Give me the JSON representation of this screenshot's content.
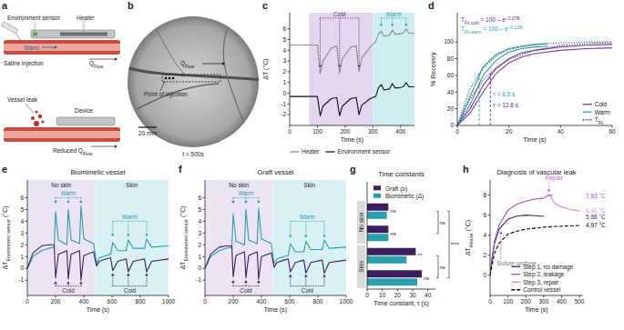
{
  "panels": {
    "a": {
      "label": "a",
      "environment_sensor": "Environment sensor",
      "heater": "Heater",
      "saline_injection": "Saline injection",
      "warm": "Warm",
      "flow": {
        "parts": [
          {
            "t": "Q"
          },
          {
            "t": "Flow",
            "sub": true
          }
        ]
      },
      "vessel_leak": "Vessel leak",
      "device": "Device",
      "reduced_flow": {
        "parts": [
          {
            "t": "Reduced Q"
          },
          {
            "t": "Flow",
            "sub": true
          }
        ]
      }
    },
    "b": {
      "label": "b",
      "flow": {
        "parts": [
          {
            "t": "Q"
          },
          {
            "t": "Flow",
            "sub": true
          }
        ]
      },
      "point_of_injection": "Point of injection",
      "scale_bar": "20 mm",
      "time": "t = 500s"
    }
  },
  "chart_data": [
    {
      "type": "line",
      "label": "c",
      "xlabel": "Time (s)",
      "ylabel": "ΔT (°C)",
      "xlim": [
        0,
        450
      ],
      "xticks": [
        0,
        100,
        200,
        300,
        400
      ],
      "ylim": [
        -3,
        7.5
      ],
      "yticks": [
        -2,
        -1,
        0,
        1,
        2,
        3,
        4,
        5,
        6
      ],
      "x": [
        0,
        60,
        100,
        110,
        120,
        150,
        170,
        180,
        190,
        220,
        240,
        250,
        260,
        290,
        310,
        320,
        330,
        340,
        360,
        370,
        380,
        390,
        410,
        420,
        430,
        450
      ],
      "series": [
        {
          "name": "Heater",
          "color": "#8c8c8c",
          "values": [
            4.5,
            4.5,
            4.5,
            1.8,
            3.0,
            4.2,
            4.4,
            1.9,
            3.2,
            4.3,
            4.4,
            2.0,
            3.3,
            4.3,
            4.8,
            5.5,
            5.8,
            5.3,
            5.4,
            5.9,
            5.5,
            5.5,
            5.6,
            6.0,
            5.6,
            5.6
          ]
        },
        {
          "name": "Environment sensor",
          "color": "#111111",
          "values": [
            -0.3,
            -0.3,
            -0.3,
            -2.1,
            -1.2,
            -0.5,
            -0.4,
            -2.1,
            -1.2,
            -0.5,
            -0.4,
            -2.0,
            -1.1,
            -0.5,
            -0.3,
            0.5,
            0.8,
            0.3,
            0.4,
            0.9,
            0.5,
            0.5,
            0.6,
            1.0,
            0.6,
            0.6
          ]
        }
      ],
      "legend": "bottom",
      "regions": [
        {
          "from": 70,
          "to": 300,
          "color": "#e4d6ef"
        },
        {
          "from": 300,
          "to": 450,
          "color": "#cfeef1"
        }
      ],
      "annotations": [
        {
          "text": "Cold",
          "x": [
            110,
            180,
            250
          ],
          "y": 7.0,
          "to": 2.4,
          "color": "#6a2c91"
        },
        {
          "text": "Warm",
          "x": [
            330,
            370,
            420
          ],
          "y": 7.0,
          "to": 6.2,
          "color": "#2b9fae"
        }
      ]
    },
    {
      "type": "line",
      "label": "d",
      "xlabel": "Time (s)",
      "ylabel": "% Recovery",
      "xlim": [
        0,
        60
      ],
      "xticks": [
        0,
        20,
        40,
        60
      ],
      "ylim": [
        0,
        135
      ],
      "yticks": [
        0,
        20,
        40,
        60,
        80,
        100
      ],
      "series": [
        {
          "name": "Cold",
          "color": "#7b3fa0",
          "x": [
            0,
            5,
            10,
            15,
            20,
            25,
            30,
            40,
            50,
            60
          ],
          "values": [
            0,
            15,
            40,
            62,
            75,
            82,
            86,
            90,
            92,
            93
          ]
        },
        {
          "name": "Cold",
          "color": "#7b3fa0",
          "x": [
            0,
            5,
            10,
            15,
            20,
            25,
            30,
            40,
            50,
            60
          ],
          "values": [
            0,
            20,
            48,
            68,
            80,
            87,
            90,
            94,
            96,
            97
          ]
        },
        {
          "name": "Warm",
          "color": "#2b9fae",
          "x": [
            0,
            5,
            10,
            15,
            20,
            25,
            30,
            35
          ],
          "values": [
            0,
            35,
            70,
            85,
            92,
            95,
            97,
            98
          ]
        },
        {
          "name": "Warm",
          "color": "#2b9fae",
          "x": [
            0,
            5,
            10,
            15,
            20,
            25,
            30,
            35
          ],
          "values": [
            0,
            25,
            60,
            78,
            88,
            92,
            94,
            95
          ]
        },
        {
          "name": "T",
          "name_sub": "Fit",
          "color": "#4a1f66",
          "line_style": "dotted",
          "x": [
            0,
            5,
            10,
            15,
            20,
            30,
            40,
            50,
            60
          ],
          "values": [
            0,
            32,
            54,
            69,
            79,
            90,
            96,
            98,
            99
          ]
        },
        {
          "name": "T",
          "name_sub": "Fit",
          "color": "#1d6f79",
          "line_style": "dotted",
          "x": [
            0,
            5,
            10,
            15,
            20,
            30,
            40,
            50,
            60
          ],
          "values": [
            0,
            45,
            69,
            83,
            91,
            97,
            99,
            100,
            100
          ]
        }
      ],
      "legend": "lower right",
      "fits": [
        {
          "parts": [
            {
              "t": "T"
            },
            {
              "t": "Fit cold",
              "sub": true
            },
            {
              "t": " = 100 – e"
            },
            {
              "t": "−0.078t",
              "sup": true
            }
          ],
          "color": "#6a2c91"
        },
        {
          "parts": [
            {
              "t": "T"
            },
            {
              "t": "Fit warm",
              "sub": true
            },
            {
              "t": " = 100 – e"
            },
            {
              "t": "−0.118t",
              "sup": true
            }
          ],
          "color": "#2b9fae"
        }
      ],
      "taus": [
        {
          "label": "τ = 8.5 s",
          "value": 8.5,
          "level": 63,
          "color": "#2b9fae"
        },
        {
          "label": "τ = 12.8 s",
          "value": 12.8,
          "level": 63,
          "color": "#6a2c91"
        }
      ]
    },
    {
      "type": "line",
      "label": "e",
      "title": "Biomimetic vessel",
      "xlabel": "Time (s)",
      "ylabel": {
        "parts": [
          {
            "t": "ΔT"
          },
          {
            "t": "Environment sensor",
            "sub": true
          },
          {
            "t": " (°C)"
          }
        ]
      },
      "xlim": [
        0,
        1000
      ],
      "xticks": [
        0,
        200,
        400,
        600,
        800,
        1000
      ],
      "ylim": [
        -2.3,
        7.5
      ],
      "yticks": [
        -1,
        0,
        1,
        2,
        3,
        4,
        5,
        6
      ],
      "x": [
        0,
        40,
        100,
        150,
        190,
        200,
        220,
        280,
        290,
        310,
        370,
        380,
        400,
        470,
        490,
        510,
        560,
        590,
        605,
        640,
        700,
        715,
        750,
        830,
        845,
        880,
        1000
      ],
      "series": [
        {
          "color": "#2b9fae",
          "values": [
            0,
            1.0,
            1.5,
            1.7,
            1.8,
            4.8,
            2.4,
            2.0,
            5.0,
            2.4,
            2.1,
            5.3,
            2.5,
            2.1,
            0.4,
            0.9,
            1.1,
            1.2,
            2.2,
            1.5,
            1.5,
            2.4,
            1.7,
            1.7,
            2.5,
            1.8,
            1.9
          ]
        },
        {
          "color": "#3b1f5c",
          "values": [
            0,
            1.3,
            1.9,
            2.0,
            2.0,
            -0.8,
            1.2,
            1.5,
            -0.9,
            1.2,
            1.5,
            -1.0,
            1.1,
            1.4,
            0.2,
            0.6,
            0.8,
            0.9,
            -0.2,
            0.6,
            0.8,
            -0.3,
            0.6,
            0.8,
            -0.3,
            0.6,
            0.8
          ]
        }
      ],
      "regions": [
        {
          "label": "No skin",
          "from": 0,
          "to": 480,
          "color": "#ece3f3"
        },
        {
          "label": "Skin",
          "from": 480,
          "to": 1000,
          "color": "#d9f1f3"
        }
      ],
      "annotations": [
        {
          "text": "Warm",
          "x": [
            200,
            290,
            380
          ],
          "y": 6.0,
          "to": 5.5,
          "color": "#2b9fae"
        },
        {
          "text": "Cold",
          "x": [
            200,
            290,
            380
          ],
          "y": -1.5,
          "to": -1.1,
          "color": "#3b1f5c"
        },
        {
          "text": "Warm",
          "x": [
            605,
            715,
            845
          ],
          "y": 4.0,
          "to": 2.7,
          "color": "#2b9fae"
        },
        {
          "text": "Cold",
          "x": [
            605,
            715,
            845
          ],
          "y": -1.5,
          "to": -0.4,
          "color": "#3b1f5c"
        }
      ]
    },
    {
      "type": "line",
      "label": "f",
      "title": "Graft vessel",
      "xlabel": "Time (s)",
      "ylabel": {
        "parts": [
          {
            "t": "ΔT"
          },
          {
            "t": "Environment sensor",
            "sub": true
          },
          {
            "t": " (°C)"
          }
        ]
      },
      "xlim": [
        0,
        1000
      ],
      "xticks": [
        0,
        200,
        400,
        600,
        800,
        1000
      ],
      "ylim": [
        -2.3,
        7.5
      ],
      "yticks": [
        -1,
        0,
        1,
        2,
        3,
        4,
        5,
        6
      ],
      "x": [
        0,
        40,
        100,
        150,
        190,
        200,
        220,
        280,
        290,
        310,
        370,
        380,
        400,
        470,
        490,
        510,
        560,
        590,
        605,
        640,
        700,
        715,
        750,
        830,
        845,
        880,
        1000
      ],
      "series": [
        {
          "color": "#2b9fae",
          "values": [
            0,
            1.0,
            1.5,
            1.7,
            1.8,
            4.6,
            2.3,
            2.0,
            5.0,
            2.4,
            2.1,
            5.1,
            2.5,
            2.1,
            0.4,
            0.8,
            1.0,
            1.1,
            2.1,
            1.4,
            1.4,
            2.3,
            1.6,
            1.6,
            2.4,
            1.7,
            1.8
          ]
        },
        {
          "color": "#3b1f5c",
          "values": [
            0,
            1.2,
            1.8,
            1.9,
            1.9,
            -0.7,
            1.1,
            1.4,
            -0.8,
            1.1,
            1.4,
            -0.9,
            1.0,
            1.3,
            0.1,
            0.5,
            0.7,
            0.8,
            -0.3,
            0.5,
            0.7,
            -0.4,
            0.5,
            0.7,
            -0.4,
            0.5,
            0.7
          ]
        }
      ],
      "regions": [
        {
          "label": "No skin",
          "from": 0,
          "to": 480,
          "color": "#ece3f3"
        },
        {
          "label": "Skin",
          "from": 480,
          "to": 1000,
          "color": "#d9f1f3"
        }
      ],
      "annotations": [
        {
          "text": "Warm",
          "x": [
            200,
            290,
            380
          ],
          "y": 6.0,
          "to": 5.5,
          "color": "#2b9fae"
        },
        {
          "text": "Cold",
          "x": [
            200,
            290,
            380
          ],
          "y": -1.5,
          "to": -1.0,
          "color": "#3b1f5c"
        },
        {
          "text": "Warm",
          "x": [
            605,
            715,
            845
          ],
          "y": 4.0,
          "to": 2.6,
          "color": "#2b9fae"
        },
        {
          "text": "Cold",
          "x": [
            605,
            715,
            845
          ],
          "y": -1.5,
          "to": -0.5,
          "color": "#3b1f5c"
        }
      ]
    },
    {
      "type": "bar",
      "orientation": "horizontal",
      "label": "g",
      "title": "Time constants",
      "xlabel": "Time constant, τ (s)",
      "xlim": [
        0,
        45
      ],
      "xticks": [
        0,
        10,
        20,
        30,
        40
      ],
      "categories": [
        null,
        null,
        null,
        null
      ],
      "groups": [
        {
          "label": "No skin",
          "rows": [
            0,
            1
          ]
        },
        {
          "label": "Skin",
          "rows": [
            2,
            3
          ]
        }
      ],
      "series": [
        {
          "name": "Graft (o)",
          "color": "#3b1f5c",
          "values": [
            14,
            14,
            32,
            36
          ]
        },
        {
          "name": "Biomimetic (Δ)",
          "color": "#2b9fae",
          "values": [
            13,
            14,
            26,
            33
          ]
        }
      ],
      "legend": "upper right",
      "significance": [
        {
          "text": "ns",
          "rows": [
            0,
            0
          ]
        },
        {
          "text": "ns",
          "rows": [
            1,
            1
          ]
        },
        {
          "text": "**",
          "rows": [
            2,
            2
          ]
        },
        {
          "text": "ns",
          "rows": [
            3,
            3
          ]
        },
        {
          "text": "ns",
          "rows": [
            0,
            1
          ]
        },
        {
          "text": "ns",
          "rows": [
            2,
            3
          ]
        },
        {
          "text": "****",
          "rows": [
            0,
            3
          ]
        }
      ]
    },
    {
      "type": "line",
      "label": "h",
      "title": "Diagnosis of vascular leak",
      "xlabel": "Time (s)",
      "ylabel": {
        "parts": [
          {
            "t": "ΔT"
          },
          {
            "t": "Heater",
            "sub": true
          },
          {
            "t": " (°C)"
          }
        ]
      },
      "xlim": [
        0,
        520
      ],
      "xticks": [
        0,
        100,
        200,
        300,
        400,
        500
      ],
      "ylim": [
        -2,
        9.5
      ],
      "yticks": [
        0,
        2,
        4,
        6,
        8
      ],
      "series": [
        {
          "name": "Step 1, no damage",
          "color": "#4b1f6f",
          "x": [
            0,
            10,
            25,
            50,
            100,
            150,
            200,
            250,
            300
          ],
          "values": [
            0,
            1.5,
            3.2,
            4.6,
            5.6,
            5.9,
            6.0,
            5.95,
            5.88
          ],
          "end_label": "5.88 °C"
        },
        {
          "name": "Step 2, leakage",
          "color": "#9b4fc0",
          "x": [
            0,
            10,
            25,
            50,
            100,
            150,
            200,
            250,
            300,
            330,
            350
          ],
          "values": [
            0,
            1.6,
            3.4,
            5.0,
            6.5,
            7.1,
            7.4,
            7.6,
            7.7,
            8.0,
            7.93
          ],
          "end_label": "7.93 °C"
        },
        {
          "name": "Step 3, repair",
          "color": "#d58ae0",
          "x": [
            300,
            330,
            360,
            400,
            450,
            500
          ],
          "values": [
            7.7,
            8.1,
            7.2,
            6.8,
            6.55,
            6.41
          ],
          "end_label": "6.41 °C"
        },
        {
          "name": "Control vessel",
          "color": "#000000",
          "line_style": "dashed",
          "x": [
            0,
            10,
            25,
            50,
            100,
            150,
            200,
            300,
            400,
            500
          ],
          "values": [
            0,
            1.0,
            2.2,
            3.2,
            4.1,
            4.4,
            4.6,
            4.8,
            4.9,
            4.97
          ],
          "end_label": "4.97 °C"
        }
      ],
      "legend": "lower right",
      "annotations": [
        {
          "text": "Repair",
          "x": [
            330
          ],
          "y": 9.3,
          "to": 8.3,
          "color": "#c05fd0"
        },
        {
          "text": "Suture undone",
          "x": [
            60
          ],
          "y": 1.6,
          "to": 4.4,
          "color": "#777777"
        }
      ]
    }
  ]
}
